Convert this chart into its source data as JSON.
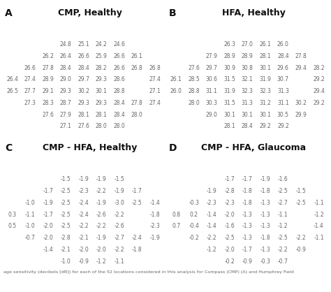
{
  "panel_A_title": "CMP, Healthy",
  "panel_B_title": "HFA, Healthy",
  "panel_C_title": "CMP - HFA, Healthy",
  "panel_D_title": "CMP - HFA, Glaucoma",
  "panel_A_label": "A",
  "panel_B_label": "B",
  "panel_C_label": "C",
  "panel_D_label": "D",
  "caption": "age sensitivity (decibels [dB]) for each of the 52 locations considered in this analysis for Compass (CMP) (A) and Humphrey Field",
  "panel_A_rows": [
    [
      null,
      null,
      null,
      "24.8",
      "25.1",
      "24.2",
      "24.6",
      null,
      null
    ],
    [
      null,
      null,
      "26.2",
      "26.4",
      "26.6",
      "25.9",
      "26.6",
      "26.1",
      null
    ],
    [
      null,
      "26.6",
      "27.8",
      "28.4",
      "28.4",
      "28.2",
      "26.6",
      "26.8",
      "26.8"
    ],
    [
      "26.4",
      "27.4",
      "28.9",
      "29.0",
      "29.7",
      "29.3",
      "28.6",
      null,
      "27.4"
    ],
    [
      "26.5",
      "27.7",
      "29.1",
      "29.3",
      "30.2",
      "30.1",
      "28.8",
      null,
      "27.1"
    ],
    [
      null,
      "27.3",
      "28.3",
      "28.7",
      "29.3",
      "29.3",
      "28.4",
      "27.8",
      "27.4"
    ],
    [
      null,
      null,
      "27.6",
      "27.9",
      "28.1",
      "28.1",
      "28.4",
      "28.0",
      null
    ],
    [
      null,
      null,
      null,
      "27.1",
      "27.6",
      "28.0",
      "28.0",
      null,
      null
    ]
  ],
  "panel_B_rows": [
    [
      null,
      null,
      null,
      "26.3",
      "27.0",
      "26.1",
      "26.0",
      null,
      null
    ],
    [
      null,
      null,
      "27.9",
      "28.9",
      "28.9",
      "28.1",
      "28.4",
      "27.8",
      null
    ],
    [
      null,
      "27.6",
      "29.7",
      "30.9",
      "30.8",
      "30.1",
      "29.6",
      "29.4",
      "28.2"
    ],
    [
      "26.1",
      "28.5",
      "30.6",
      "31.5",
      "32.1",
      "31.9",
      "30.7",
      null,
      "29.2"
    ],
    [
      "26.0",
      "28.8",
      "31.1",
      "31.9",
      "32.3",
      "32.3",
      "31.3",
      null,
      "29.4"
    ],
    [
      null,
      "28.0",
      "30.3",
      "31.5",
      "31.3",
      "31.2",
      "31.1",
      "30.2",
      "29.2"
    ],
    [
      null,
      null,
      "29.0",
      "30.1",
      "30.1",
      "30.1",
      "30.5",
      "29.9",
      null
    ],
    [
      null,
      null,
      null,
      "28.1",
      "28.4",
      "29.2",
      "29.2",
      null,
      null
    ]
  ],
  "panel_C_rows": [
    [
      null,
      null,
      null,
      "-1.5",
      "-1.9",
      "-1.9",
      "-1.5",
      null,
      null
    ],
    [
      null,
      null,
      "-1.7",
      "-2.5",
      "-2.3",
      "-2.2",
      "-1.9",
      "-1.7",
      null
    ],
    [
      null,
      "-1.0",
      "-1.9",
      "-2.5",
      "-2.4",
      "-1.9",
      "-3.0",
      "-2.5",
      "-1.4"
    ],
    [
      "0.3",
      "-1.1",
      "-1.7",
      "-2.5",
      "-2.4",
      "-2.6",
      "-2.2",
      null,
      "-1.8"
    ],
    [
      "0.5",
      "-1.0",
      "-2.0",
      "-2.5",
      "-2.2",
      "-2.2",
      "-2.6",
      null,
      "-2.3"
    ],
    [
      null,
      "-0.7",
      "-2.0",
      "-2.8",
      "-2.1",
      "-1.9",
      "-2.7",
      "-2.4",
      "-1.9"
    ],
    [
      null,
      null,
      "-1.4",
      "-2.1",
      "-2.0",
      "-2.0",
      "-2.2",
      "-1.8",
      null
    ],
    [
      null,
      null,
      null,
      "-1.0",
      "-0.9",
      "-1.2",
      "-1.1",
      null,
      null
    ]
  ],
  "panel_D_rows": [
    [
      null,
      null,
      null,
      "-1.7",
      "-1.7",
      "-1.9",
      "-1.6",
      null,
      null
    ],
    [
      null,
      null,
      "-1.9",
      "-2.8",
      "-1.8",
      "-1.8",
      "-2.5",
      "-1.5",
      null
    ],
    [
      null,
      "-0.3",
      "-2.3",
      "-2.3",
      "-1.8",
      "-1.3",
      "-2.7",
      "-2.5",
      "-1.1"
    ],
    [
      "0.8",
      "0.2",
      "-1.4",
      "-2.0",
      "-1.3",
      "-1.3",
      "-1.1",
      null,
      "-1.2"
    ],
    [
      "0.7",
      "-0.4",
      "-1.4",
      "-1.6",
      "-1.3",
      "-1.3",
      "-1.2",
      null,
      "-1.4"
    ],
    [
      null,
      "-0.2",
      "-2.2",
      "-2.5",
      "-1.3",
      "-1.8",
      "-2.5",
      "-2.2",
      "-1.1"
    ],
    [
      null,
      null,
      "-1.2",
      "-2.0",
      "-1.7",
      "-1.3",
      "-2.2",
      "-0.9",
      null
    ],
    [
      null,
      null,
      null,
      "-0.2",
      "-0.9",
      "-0.3",
      "-0.7",
      null,
      null
    ]
  ],
  "font_color": "#666666",
  "title_color": "#111111",
  "bg_color": "#ffffff",
  "font_size_data": 5.5,
  "font_size_title": 9.0,
  "font_size_label": 10.0,
  "font_size_caption": 4.6,
  "n_cols": 9,
  "n_rows": 8
}
